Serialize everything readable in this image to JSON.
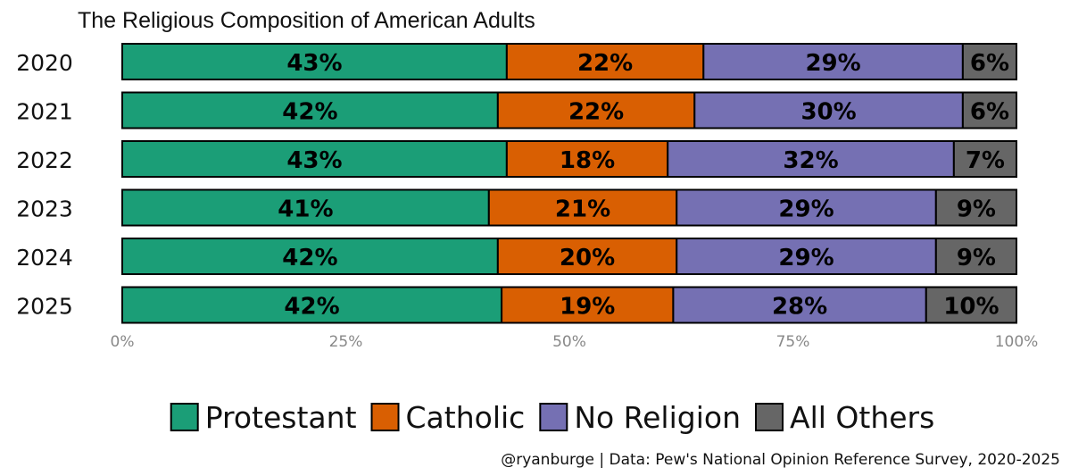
{
  "chart_data": {
    "type": "bar",
    "orientation": "horizontal",
    "stacked": true,
    "title": "The Religious Composition of American Adults",
    "categories": [
      "2020",
      "2021",
      "2022",
      "2023",
      "2024",
      "2025"
    ],
    "series": [
      {
        "name": "Protestant",
        "values": [
          43,
          42,
          43,
          41,
          42,
          42
        ],
        "color": "#1b9e77"
      },
      {
        "name": "Catholic",
        "values": [
          22,
          22,
          18,
          21,
          20,
          19
        ],
        "color": "#d95f02"
      },
      {
        "name": "No Religion",
        "values": [
          29,
          30,
          32,
          29,
          29,
          28
        ],
        "color": "#7570b3"
      },
      {
        "name": "All Others",
        "values": [
          6,
          6,
          7,
          9,
          9,
          10
        ],
        "color": "#666666"
      }
    ],
    "data_labels": [
      [
        "43%",
        "22%",
        "29%",
        "6%"
      ],
      [
        "42%",
        "22%",
        "30%",
        "6%"
      ],
      [
        "43%",
        "18%",
        "32%",
        "7%"
      ],
      [
        "41%",
        "21%",
        "29%",
        "9%"
      ],
      [
        "42%",
        "20%",
        "29%",
        "9%"
      ],
      [
        "42%",
        "19%",
        "28%",
        "10%"
      ]
    ],
    "xlim": [
      0,
      100
    ],
    "xticks": [
      0,
      25,
      50,
      75,
      100
    ],
    "xtick_labels": [
      "0%",
      "25%",
      "50%",
      "75%",
      "100%"
    ],
    "xlabel": "",
    "ylabel": "",
    "grid": false,
    "legend_position": "bottom",
    "caption": "@ryanburge | Data: Pew's National Opinion Reference Survey, 2020-2025"
  }
}
